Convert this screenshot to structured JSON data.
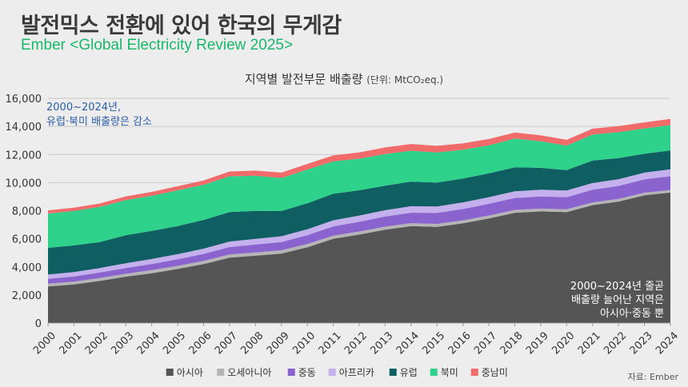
{
  "header": {
    "title": "발전믹스 전환에 있어 한국의 무게감",
    "subtitle": "Ember <Global Electricity Review 2025>"
  },
  "source": "자료: Ember",
  "chart_data": {
    "type": "area",
    "stacked": true,
    "title": "지역별 발전부문 배출량",
    "title_unit": "(단위: MtCO₂eq.)",
    "xlabel": "",
    "ylabel": "",
    "x": [
      2000,
      2001,
      2002,
      2003,
      2004,
      2005,
      2006,
      2007,
      2008,
      2009,
      2010,
      2011,
      2012,
      2013,
      2014,
      2015,
      2016,
      2017,
      2018,
      2019,
      2020,
      2021,
      2022,
      2023,
      2024
    ],
    "ylim": [
      0,
      16000
    ],
    "yticks": [
      0,
      2000,
      4000,
      6000,
      8000,
      10000,
      12000,
      14000,
      16000
    ],
    "ytick_labels": [
      "0",
      "2,000",
      "4,000",
      "6,000",
      "8,000",
      "10,000",
      "12,000",
      "14,000",
      "16,000"
    ],
    "grid": true,
    "legend_position": "bottom",
    "series": [
      {
        "name": "아시아",
        "color": "#555555",
        "values": [
          2600,
          2750,
          3000,
          3300,
          3550,
          3850,
          4200,
          4650,
          4800,
          4950,
          5400,
          6000,
          6300,
          6650,
          6900,
          6850,
          7100,
          7450,
          7850,
          7950,
          7900,
          8400,
          8650,
          9100,
          9300
        ]
      },
      {
        "name": "오세아니아",
        "color": "#b5b5b5",
        "values": [
          200,
          200,
          210,
          210,
          220,
          220,
          225,
          230,
          230,
          230,
          230,
          225,
          220,
          215,
          210,
          210,
          210,
          210,
          205,
          200,
          195,
          190,
          185,
          180,
          175
        ]
      },
      {
        "name": "중동",
        "color": "#8a63cf",
        "values": [
          350,
          370,
          390,
          410,
          440,
          470,
          500,
          530,
          560,
          590,
          630,
          660,
          690,
          720,
          750,
          780,
          810,
          830,
          850,
          870,
          870,
          900,
          930,
          950,
          980
        ]
      },
      {
        "name": "아프리카",
        "color": "#c5b0ee",
        "values": [
          300,
          310,
          320,
          340,
          350,
          360,
          370,
          390,
          400,
          410,
          420,
          430,
          440,
          450,
          460,
          460,
          470,
          470,
          480,
          480,
          470,
          480,
          480,
          480,
          490
        ]
      },
      {
        "name": "유럽",
        "color": "#0e5e62",
        "values": [
          1900,
          1900,
          1850,
          2000,
          2000,
          2000,
          2050,
          2100,
          2000,
          1800,
          1850,
          1900,
          1800,
          1750,
          1750,
          1700,
          1700,
          1700,
          1700,
          1550,
          1450,
          1600,
          1500,
          1350,
          1350
        ]
      },
      {
        "name": "북미",
        "color": "#2ed28a",
        "values": [
          2450,
          2450,
          2500,
          2500,
          2500,
          2550,
          2500,
          2550,
          2500,
          2350,
          2400,
          2300,
          2250,
          2250,
          2200,
          2150,
          2050,
          2000,
          2050,
          1900,
          1750,
          1850,
          1850,
          1800,
          1800
        ]
      },
      {
        "name": "중남미",
        "color": "#f26b6b",
        "values": [
          220,
          230,
          240,
          260,
          280,
          290,
          310,
          340,
          360,
          380,
          400,
          420,
          450,
          470,
          480,
          470,
          460,
          440,
          430,
          420,
          410,
          420,
          430,
          430,
          440
        ]
      }
    ],
    "annotations": [
      {
        "lines": [
          "2000~2024년,",
          "유럽·북미 배출량은 감소"
        ],
        "position": "top-left"
      },
      {
        "lines": [
          "2000~2024년 줄곧",
          "배출량 늘어난 지역은",
          "아시아·중동 뿐"
        ],
        "position": "bottom-right"
      }
    ]
  }
}
